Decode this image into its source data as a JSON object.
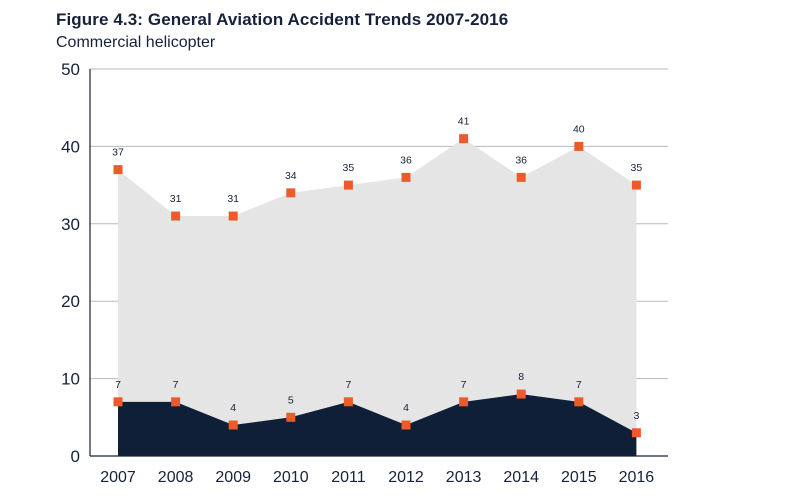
{
  "header": {
    "title": "Figure 4.3: General Aviation Accident Trends 2007-2016",
    "subtitle": "Commercial helicopter"
  },
  "colors": {
    "total_area": "#e5e5e6",
    "fatal_area": "#0f1f37",
    "marker": "#ee5a2a",
    "grid": "#b9b9bc",
    "text": "#16213a"
  },
  "chart_data": {
    "type": "area",
    "title": "Figure 4.3: General Aviation Accident Trends 2007-2016",
    "subtitle": "Commercial helicopter",
    "xlabel": "",
    "ylabel": "",
    "categories": [
      "2007",
      "2008",
      "2009",
      "2010",
      "2011",
      "2012",
      "2013",
      "2014",
      "2015",
      "2016"
    ],
    "ylim": [
      0,
      50
    ],
    "yticks": [
      0,
      10,
      20,
      30,
      40,
      50
    ],
    "grid": true,
    "legend": "none",
    "series": [
      {
        "values": [
          37,
          31,
          31,
          34,
          35,
          36,
          41,
          36,
          40,
          35
        ],
        "color": "#e5e5e6"
      },
      {
        "values": [
          7,
          7,
          4,
          5,
          7,
          4,
          7,
          8,
          7,
          3
        ],
        "color": "#0f1f37"
      }
    ]
  }
}
